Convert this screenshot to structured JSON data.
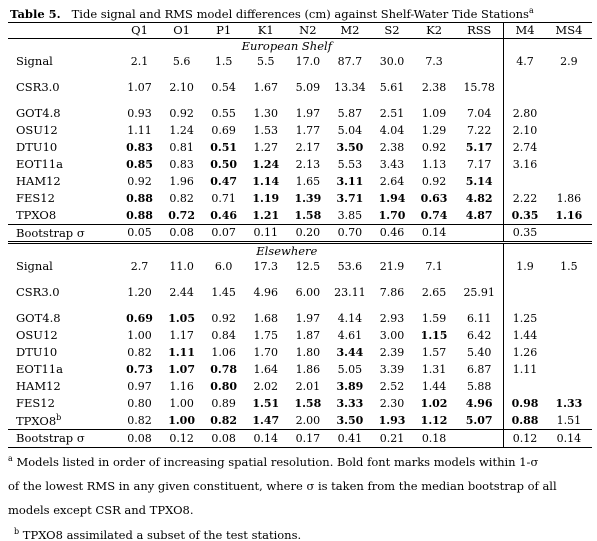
{
  "caption": {
    "label": "Table 5.",
    "text": "Tide signal and RMS model differences (cm) against Shelf-Water Tide Stations",
    "sup": "a"
  },
  "columns": [
    "",
    "Q1",
    "O1",
    "P1",
    "K1",
    "N2",
    "M2",
    "S2",
    "K2",
    "RSS",
    "M4",
    "MS4"
  ],
  "sections": [
    {
      "title": "European Shelf",
      "signal": [
        "Signal",
        "2.1",
        "5.6",
        "1.5",
        "5.5",
        "17.0",
        "87.7",
        "30.0",
        "7.3",
        "",
        "4.7",
        "2.9"
      ],
      "csr": [
        "CSR3.0",
        "1.07",
        "2.10",
        "0.54",
        "1.67",
        "5.09",
        "13.34",
        "5.61",
        "2.38",
        "15.78",
        "",
        ""
      ],
      "models": [
        {
          "name": "GOT4.8",
          "vals": [
            "0.93",
            "0.92",
            "0.55",
            "1.30",
            "1.97",
            "5.87",
            "2.51",
            "1.09",
            "7.04",
            "2.80",
            ""
          ],
          "bold": []
        },
        {
          "name": "OSU12",
          "vals": [
            "1.11",
            "1.24",
            "0.69",
            "1.53",
            "1.77",
            "5.04",
            "4.04",
            "1.29",
            "7.22",
            "2.10",
            ""
          ],
          "bold": []
        },
        {
          "name": "DTU10",
          "vals": [
            "0.83",
            "0.81",
            "0.51",
            "1.27",
            "2.17",
            "3.50",
            "2.38",
            "0.92",
            "5.17",
            "2.74",
            ""
          ],
          "bold": [
            0,
            2,
            5,
            8
          ]
        },
        {
          "name": "EOT11a",
          "vals": [
            "0.85",
            "0.83",
            "0.50",
            "1.24",
            "2.13",
            "5.53",
            "3.43",
            "1.13",
            "7.17",
            "3.16",
            ""
          ],
          "bold": [
            0,
            2,
            3
          ]
        },
        {
          "name": "HAM12",
          "vals": [
            "0.92",
            "1.96",
            "0.47",
            "1.14",
            "1.65",
            "3.11",
            "2.64",
            "0.92",
            "5.14",
            "",
            ""
          ],
          "bold": [
            2,
            3,
            5,
            8
          ]
        },
        {
          "name": "FES12",
          "vals": [
            "0.88",
            "0.82",
            "0.71",
            "1.19",
            "1.39",
            "3.71",
            "1.94",
            "0.63",
            "4.82",
            "2.22",
            "1.86"
          ],
          "bold": [
            0,
            3,
            4,
            5,
            6,
            7,
            8
          ]
        },
        {
          "name": "TPXO8",
          "vals": [
            "0.88",
            "0.72",
            "0.46",
            "1.21",
            "1.58",
            "3.85",
            "1.70",
            "0.74",
            "4.87",
            "0.35",
            "1.16"
          ],
          "bold": [
            0,
            1,
            2,
            3,
            4,
            6,
            7,
            8,
            9,
            10
          ]
        }
      ],
      "bootstrap": [
        "Bootstrap σ",
        "0.05",
        "0.08",
        "0.07",
        "0.11",
        "0.20",
        "0.70",
        "0.46",
        "0.14",
        "",
        "0.35",
        ""
      ]
    },
    {
      "title": "Elsewhere",
      "signal": [
        "Signal",
        "2.7",
        "11.0",
        "6.0",
        "17.3",
        "12.5",
        "53.6",
        "21.9",
        "7.1",
        "",
        "1.9",
        "1.5"
      ],
      "csr": [
        "CSR3.0",
        "1.20",
        "2.44",
        "1.45",
        "4.96",
        "6.00",
        "23.11",
        "7.86",
        "2.65",
        "25.91",
        "",
        ""
      ],
      "models": [
        {
          "name": "GOT4.8",
          "vals": [
            "0.69",
            "1.05",
            "0.92",
            "1.68",
            "1.97",
            "4.14",
            "2.93",
            "1.59",
            "6.11",
            "1.25",
            ""
          ],
          "bold": [
            0,
            1
          ]
        },
        {
          "name": "OSU12",
          "vals": [
            "1.00",
            "1.17",
            "0.84",
            "1.75",
            "1.87",
            "4.61",
            "3.00",
            "1.15",
            "6.42",
            "1.44",
            ""
          ],
          "bold": [
            7
          ]
        },
        {
          "name": "DTU10",
          "vals": [
            "0.82",
            "1.11",
            "1.06",
            "1.70",
            "1.80",
            "3.44",
            "2.39",
            "1.57",
            "5.40",
            "1.26",
            ""
          ],
          "bold": [
            1,
            5
          ]
        },
        {
          "name": "EOT11a",
          "vals": [
            "0.73",
            "1.07",
            "0.78",
            "1.64",
            "1.86",
            "5.05",
            "3.39",
            "1.31",
            "6.87",
            "1.11",
            ""
          ],
          "bold": [
            0,
            1,
            2
          ]
        },
        {
          "name": "HAM12",
          "vals": [
            "0.97",
            "1.16",
            "0.80",
            "2.02",
            "2.01",
            "3.89",
            "2.52",
            "1.44",
            "5.88",
            "",
            ""
          ],
          "bold": [
            2,
            5
          ]
        },
        {
          "name": "FES12",
          "vals": [
            "0.80",
            "1.00",
            "0.89",
            "1.51",
            "1.58",
            "3.33",
            "2.30",
            "1.02",
            "4.96",
            "0.98",
            "1.33"
          ],
          "bold": [
            3,
            4,
            5,
            7,
            8,
            9,
            10
          ]
        },
        {
          "name": "TPXO8",
          "sup": "b",
          "vals": [
            "0.82",
            "1.00",
            "0.82",
            "1.47",
            "2.00",
            "3.50",
            "1.93",
            "1.12",
            "5.07",
            "0.88",
            "1.51"
          ],
          "bold": [
            1,
            2,
            3,
            5,
            6,
            7,
            8,
            9
          ]
        }
      ],
      "bootstrap": [
        "Bootstrap σ",
        "0.08",
        "0.12",
        "0.08",
        "0.14",
        "0.17",
        "0.41",
        "0.21",
        "0.18",
        "",
        "0.12",
        "0.14"
      ]
    }
  ],
  "notes": {
    "a_mark": "a",
    "a_text_1": "Models listed in order of increasing spatial resolution. Bold font marks models within 1-σ",
    "a_text_2": "of the lowest RMS in any given constituent, where σ is taken from the median bootstrap of all",
    "a_text_3": "models except CSR and TPXO8.",
    "b_mark": "b",
    "b_text": "TPXO8 assimilated a subset of the test stations."
  }
}
